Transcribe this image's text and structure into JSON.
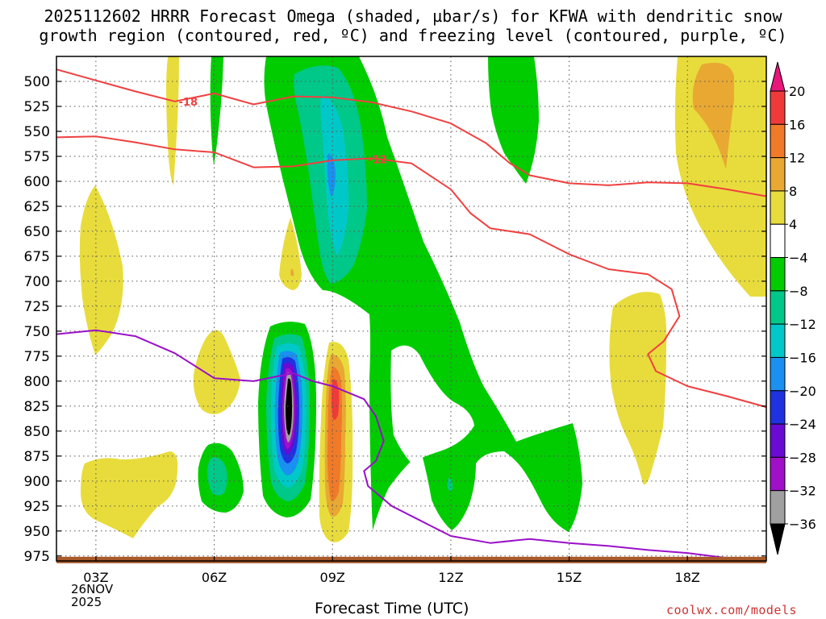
{
  "title_line1": "2025112602 HRRR Forecast Omega (shaded, µbar/s) for KFWA with dendritic snow",
  "title_line2": "growth region (contoured, red, ºC) and freezing level (contoured, purple, ºC)",
  "credit": "coolwx.com/models",
  "date_line1": "26NOV",
  "date_line2": "2025",
  "chart_data": {
    "type": "heatmap",
    "title": "2025112602 HRRR Forecast Omega (shaded, µbar/s) for KFWA with dendritic snow growth region (contoured, red, ºC) and freezing level (contoured, purple, ºC)",
    "xlabel": "Forecast Time (UTC)",
    "ylabel": "",
    "x_ticks": [
      "03Z",
      "06Z",
      "09Z",
      "12Z",
      "15Z",
      "18Z"
    ],
    "x_tick_hours": [
      3,
      6,
      9,
      12,
      15,
      18
    ],
    "xlim": [
      2,
      20
    ],
    "y_ticks": [
      500,
      525,
      550,
      575,
      600,
      625,
      650,
      675,
      700,
      725,
      750,
      775,
      800,
      825,
      850,
      875,
      900,
      925,
      950,
      975
    ],
    "ylim": [
      475,
      980
    ],
    "grid": true,
    "colorbar": {
      "labels": [
        "20",
        "16",
        "12",
        "8",
        "4",
        "−4",
        "−8",
        "−12",
        "−16",
        "−20",
        "−24",
        "−28",
        "−32",
        "−36"
      ],
      "bins": [
        {
          "range": [
            20,
            24
          ],
          "color": "#e8157a"
        },
        {
          "range": [
            16,
            20
          ],
          "color": "#f03a3a"
        },
        {
          "range": [
            12,
            16
          ],
          "color": "#f07a28"
        },
        {
          "range": [
            8,
            12
          ],
          "color": "#e8a832"
        },
        {
          "range": [
            4,
            8
          ],
          "color": "#e8dc3c"
        },
        {
          "range": [
            -4,
            4
          ],
          "color": "#ffffff"
        },
        {
          "range": [
            -8,
            -4
          ],
          "color": "#00cc00"
        },
        {
          "range": [
            -12,
            -8
          ],
          "color": "#00c888"
        },
        {
          "range": [
            -16,
            -12
          ],
          "color": "#00c8c8"
        },
        {
          "range": [
            -20,
            -16
          ],
          "color": "#1a90f0"
        },
        {
          "range": [
            -24,
            -20
          ],
          "color": "#1e32e0"
        },
        {
          "range": [
            -28,
            -24
          ],
          "color": "#6a0ad2"
        },
        {
          "range": [
            -32,
            -28
          ],
          "color": "#a010c8"
        },
        {
          "range": [
            -36,
            -32
          ],
          "color": "#a0a0a0"
        },
        {
          "range": [
            -40,
            -36
          ],
          "color": "#000000"
        }
      ]
    },
    "contours": [
      {
        "name": "dgz -18C",
        "label": "-18",
        "color": "#f04040",
        "points": [
          [
            2.0,
            488
          ],
          [
            3.0,
            499
          ],
          [
            4.0,
            510
          ],
          [
            5.0,
            520
          ],
          [
            6.0,
            512
          ],
          [
            7.0,
            523
          ],
          [
            8.0,
            515
          ],
          [
            9.0,
            516
          ],
          [
            10.0,
            521
          ],
          [
            11.0,
            530
          ],
          [
            12.0,
            542
          ],
          [
            12.9,
            562
          ],
          [
            13.5,
            582
          ],
          [
            14.0,
            594
          ],
          [
            15.0,
            602
          ],
          [
            16.0,
            604
          ],
          [
            17.0,
            601
          ],
          [
            18.0,
            602
          ],
          [
            19.0,
            608
          ],
          [
            20.0,
            615
          ]
        ],
        "label_at": [
          5.1,
          520
        ]
      },
      {
        "name": "dgz -12C",
        "label": "-12",
        "color": "#f04040",
        "points": [
          [
            2.0,
            556
          ],
          [
            3.0,
            555
          ],
          [
            4.0,
            561
          ],
          [
            5.0,
            568
          ],
          [
            6.0,
            571
          ],
          [
            7.0,
            586
          ],
          [
            8.0,
            585
          ],
          [
            9.0,
            579
          ],
          [
            10.0,
            577
          ],
          [
            11.0,
            582
          ],
          [
            12.0,
            608
          ],
          [
            12.5,
            632
          ],
          [
            13.0,
            647
          ],
          [
            14.0,
            653
          ],
          [
            15.0,
            673
          ],
          [
            16.0,
            688
          ],
          [
            17.0,
            693
          ],
          [
            17.6,
            708
          ],
          [
            17.8,
            735
          ],
          [
            17.4,
            760
          ],
          [
            17.0,
            773
          ],
          [
            17.2,
            790
          ],
          [
            18.0,
            805
          ],
          [
            19.0,
            815
          ],
          [
            20.0,
            826
          ]
        ],
        "label_at": [
          9.9,
          578
        ]
      },
      {
        "name": "freezing 0C",
        "label": "",
        "color": "#9a10c8",
        "points": [
          [
            2.0,
            753
          ],
          [
            3.0,
            749
          ],
          [
            4.0,
            755
          ],
          [
            5.0,
            772
          ],
          [
            6.0,
            797
          ],
          [
            7.0,
            800
          ],
          [
            8.0,
            792
          ],
          [
            8.5,
            800
          ],
          [
            9.0,
            805
          ],
          [
            9.8,
            818
          ],
          [
            10.1,
            835
          ],
          [
            10.3,
            860
          ],
          [
            10.1,
            880
          ],
          [
            9.8,
            890
          ],
          [
            9.9,
            905
          ],
          [
            10.5,
            925
          ],
          [
            11.0,
            935
          ],
          [
            11.5,
            945
          ],
          [
            12.0,
            955
          ],
          [
            13.0,
            962
          ],
          [
            14.0,
            958
          ],
          [
            15.0,
            962
          ],
          [
            16.0,
            965
          ],
          [
            17.0,
            969
          ],
          [
            18.0,
            972
          ],
          [
            19.0,
            977
          ],
          [
            19.7,
            980
          ]
        ]
      }
    ],
    "ground": {
      "color": "#a85a2a",
      "pressure_top": 975
    }
  }
}
